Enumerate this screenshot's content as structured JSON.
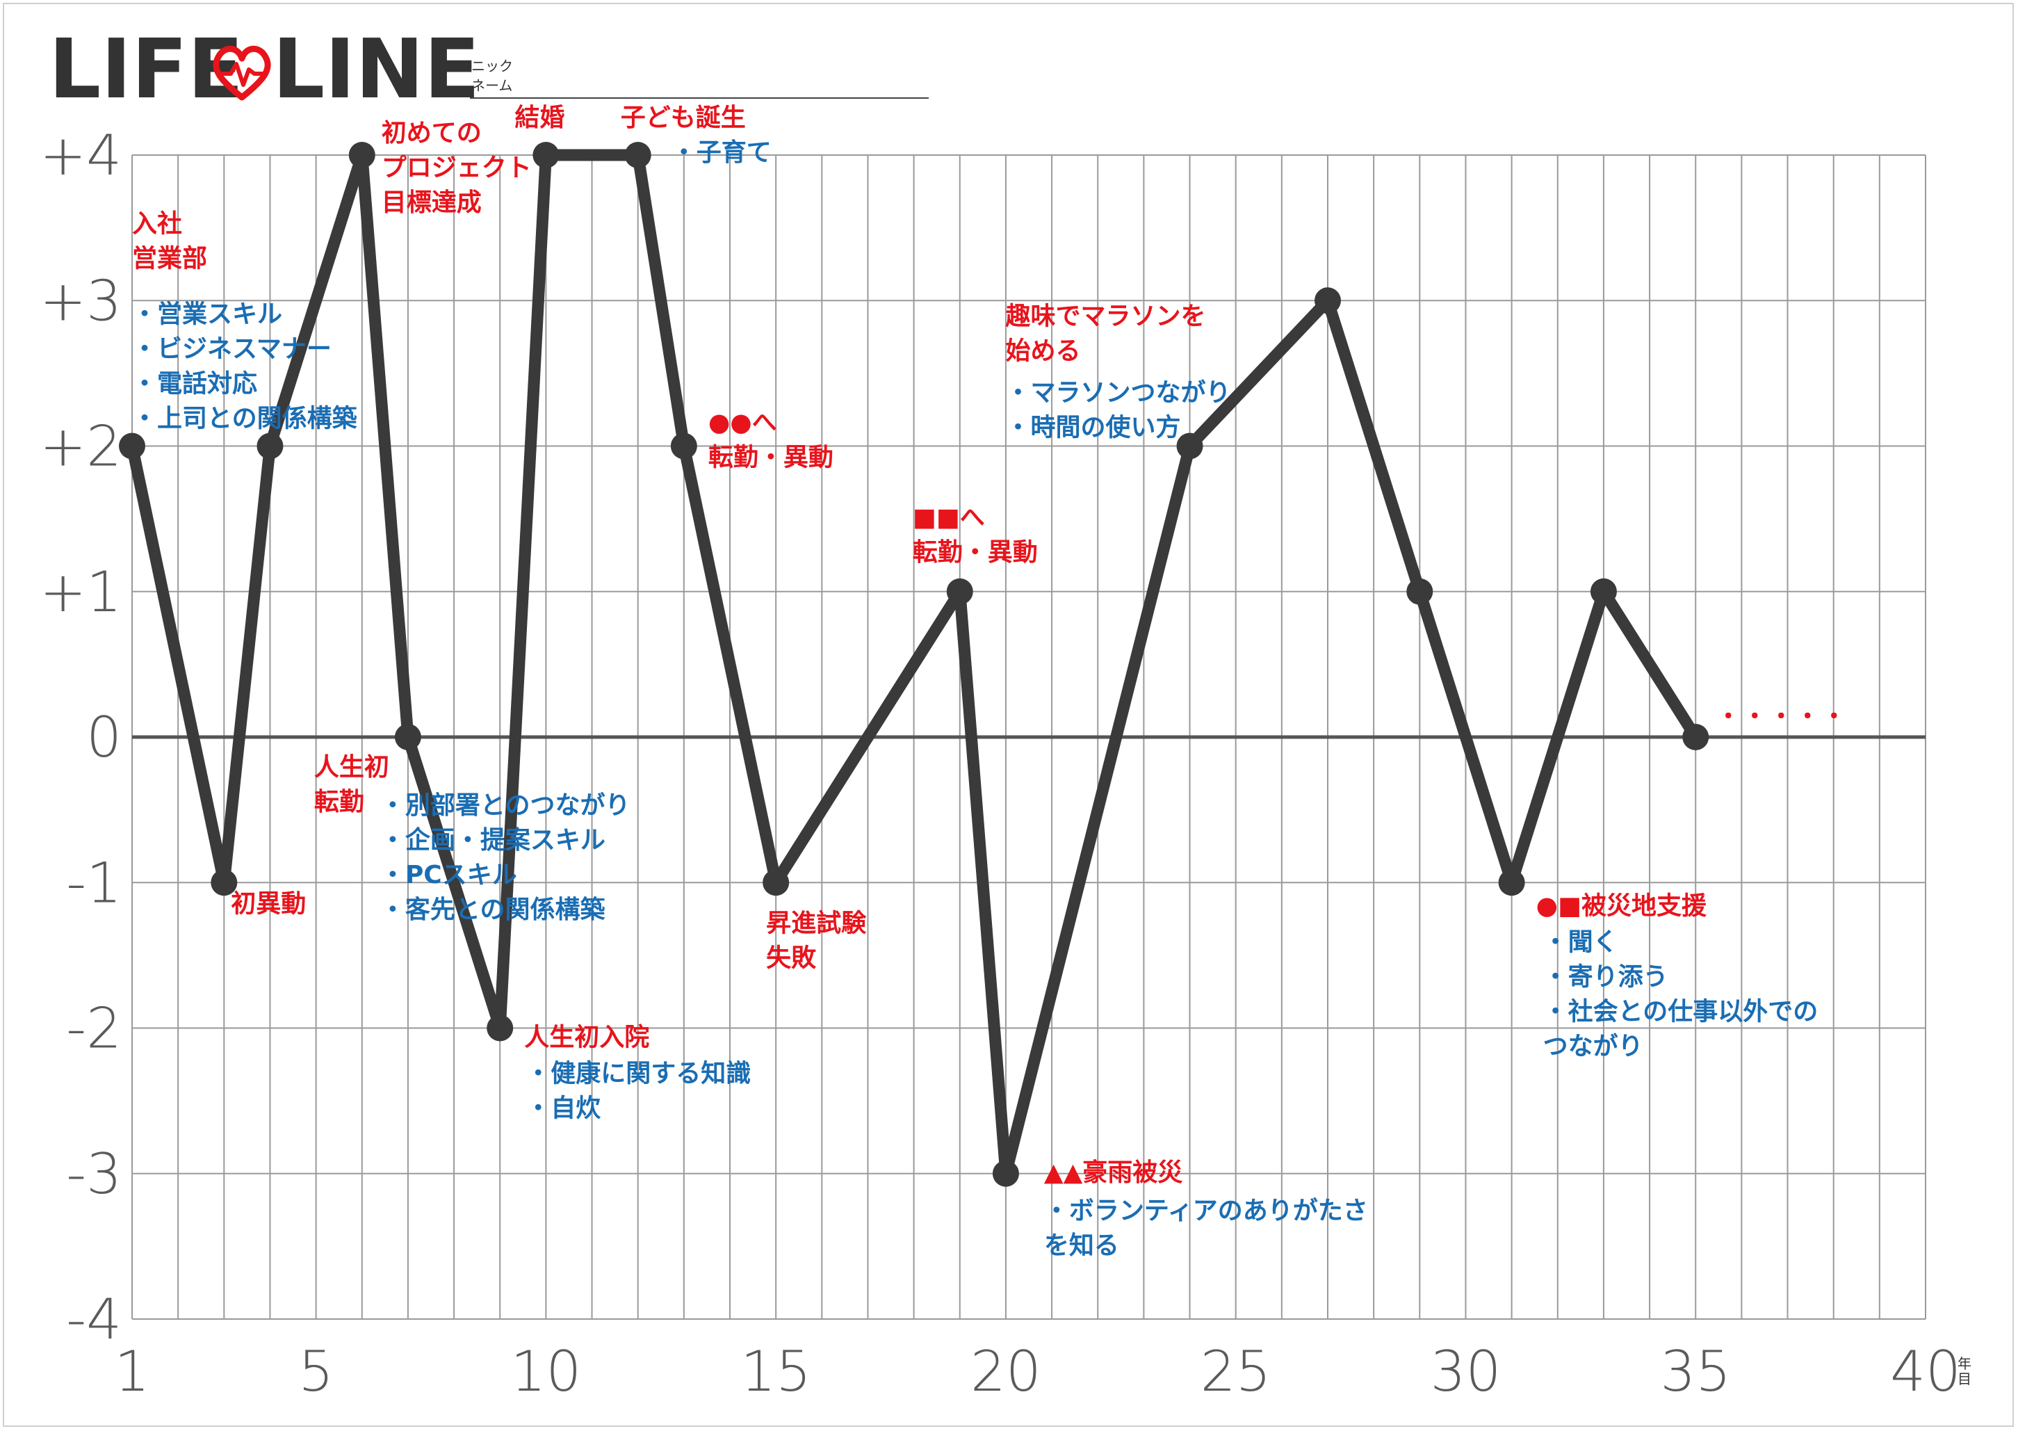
{
  "header": {
    "title_left": "LIFE",
    "title_right": "LINE",
    "nickname_label_1": "ニック",
    "nickname_label_2": "ネーム"
  },
  "colors": {
    "line": "#3a3a3a",
    "grid": "#9a9a9a",
    "zero_line": "#555555",
    "event_text": "#e8141c",
    "note_text": "#1a6db3",
    "logo_heart": "#e8141c"
  },
  "icons": {
    "logo": "heart-pulse-icon"
  },
  "chart_data": {
    "type": "line",
    "title": "LIFE LINE",
    "x_unit": "年目",
    "xlim": [
      1,
      40
    ],
    "ylim": [
      -4,
      4
    ],
    "x_ticks": [
      1,
      5,
      10,
      15,
      20,
      25,
      30,
      35,
      40
    ],
    "x_tick_labels": [
      "1",
      "5",
      "10",
      "15",
      "20",
      "25",
      "30",
      "35",
      "40"
    ],
    "y_ticks": [
      4,
      3,
      2,
      1,
      0,
      -1,
      -2,
      -3,
      -4
    ],
    "y_tick_labels": [
      "+4",
      "+3",
      "+2",
      "+1",
      "0",
      "-1",
      "-2",
      "-3",
      "-4"
    ],
    "grid": true,
    "series": [
      {
        "x": [
          1,
          3,
          4,
          6,
          7,
          9,
          10,
          12,
          13,
          15,
          19,
          20,
          24,
          27,
          29,
          31,
          33,
          35
        ],
        "y": [
          2,
          -1,
          2,
          4,
          0,
          -2,
          4,
          4,
          2,
          -1,
          1,
          -3,
          2,
          3,
          1,
          -1,
          1,
          0
        ]
      }
    ],
    "continuation": "・・・・・",
    "annotations": [
      {
        "x": 1,
        "y": 2,
        "events": [
          "入社",
          "営業部"
        ],
        "notes": [
          "・営業スキル",
          "・ビジネスマナー",
          "・電話対応",
          "・上司との関係構築"
        ]
      },
      {
        "x": 3,
        "y": -1,
        "events": [
          "初異動"
        ],
        "notes": []
      },
      {
        "x": 6,
        "y": 4,
        "events": [
          "初めての",
          "プロジェクト",
          "目標達成"
        ],
        "notes": []
      },
      {
        "x": 7,
        "y": 0,
        "events": [
          "人生初",
          "転勤"
        ],
        "notes": [
          "・別部署とのつながり",
          "・企画・提案スキル",
          "・PCスキル",
          "・客先との関係構築"
        ]
      },
      {
        "x": 9,
        "y": -2,
        "events": [
          "人生初入院"
        ],
        "notes": [
          "・健康に関する知識",
          "・自炊"
        ]
      },
      {
        "x": 10,
        "y": 4,
        "events": [
          "結婚"
        ],
        "notes": []
      },
      {
        "x": 12,
        "y": 4,
        "events": [
          "子ども誕生"
        ],
        "notes": [
          "・子育て"
        ]
      },
      {
        "x": 13,
        "y": 2,
        "events": [
          "●●へ",
          "転勤・異動"
        ],
        "notes": []
      },
      {
        "x": 15,
        "y": -1,
        "events": [
          "昇進試験",
          "失敗"
        ],
        "notes": []
      },
      {
        "x": 19,
        "y": 1,
        "events": [
          "■■へ",
          "転勤・異動"
        ],
        "notes": []
      },
      {
        "x": 20,
        "y": -3,
        "events": [
          "▲▲豪雨被災"
        ],
        "notes": [
          "・ボランティアのありがたさ",
          "を知る"
        ]
      },
      {
        "x": 24,
        "y": 2,
        "events": [
          "趣味でマラソンを",
          "始める"
        ],
        "notes": [
          "・マラソンつながり",
          "・時間の使い方"
        ]
      },
      {
        "x": 31,
        "y": -1,
        "events": [
          "●■被災地支援"
        ],
        "notes": [
          "・聞く",
          "・寄り添う",
          "・社会との仕事以外での",
          "つながり"
        ]
      }
    ]
  }
}
